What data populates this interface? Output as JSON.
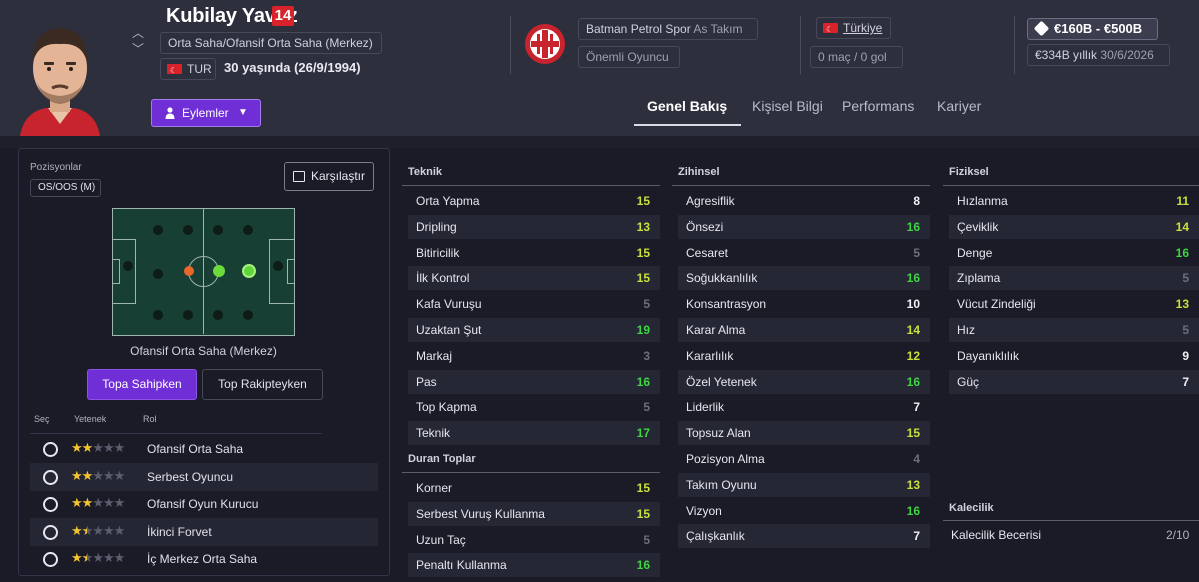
{
  "player": {
    "name": "Kubilay Yavuz",
    "number": "14",
    "position": "Orta Saha/Ofansif Orta Saha (Merkez)",
    "nationality": "TUR",
    "age_text": "30 yaşında (26/9/1994)"
  },
  "club": {
    "name": "Batman Petrol Spor",
    "team": "As Takım",
    "status": "Önemli Oyuncu"
  },
  "country": {
    "name": "Türkiye",
    "apps": "0 maç / 0 gol"
  },
  "finance": {
    "value_range": "€160B - €500B",
    "wage": "€334B yıllık",
    "contract_end": "30/6/2026"
  },
  "actions_label": "Eylemler",
  "tabs": [
    "Genel Bakış",
    "Kişisel Bilgi",
    "Performans",
    "Kariyer"
  ],
  "left": {
    "positions_label": "Pozisyonlar",
    "position_tag": "OS/OOS (M)",
    "compare_label": "Karşılaştır",
    "pitch_caption": "Ofansif Orta Saha (Merkez)",
    "toggle_in_possession": "Topa Sahipken",
    "toggle_out_possession": "Top Rakipteyken",
    "role_headers": {
      "select": "Seç",
      "ability": "Yetenek",
      "role": "Rol"
    },
    "roles": [
      {
        "name": "Ofansif Orta Saha",
        "stars": 2
      },
      {
        "name": "Serbest Oyuncu",
        "stars": 2
      },
      {
        "name": "Ofansif Oyun Kurucu",
        "stars": 2
      },
      {
        "name": "İkinci Forvet",
        "stars": 1.5
      },
      {
        "name": "İç Merkez Orta Saha",
        "stars": 1.5
      }
    ]
  },
  "attributes": {
    "technical_title": "Teknik",
    "technical": [
      {
        "name": "Orta Yapma",
        "value": 15
      },
      {
        "name": "Dripling",
        "value": 13
      },
      {
        "name": "Bitiricilik",
        "value": 15
      },
      {
        "name": "İlk Kontrol",
        "value": 15
      },
      {
        "name": "Kafa Vuruşu",
        "value": 5
      },
      {
        "name": "Uzaktan Şut",
        "value": 19
      },
      {
        "name": "Markaj",
        "value": 3
      },
      {
        "name": "Pas",
        "value": 16
      },
      {
        "name": "Top Kapma",
        "value": 5
      },
      {
        "name": "Teknik",
        "value": 17
      }
    ],
    "set_pieces_title": "Duran Toplar",
    "set_pieces": [
      {
        "name": "Korner",
        "value": 15
      },
      {
        "name": "Serbest Vuruş Kullanma",
        "value": 15
      },
      {
        "name": "Uzun Taç",
        "value": 5
      },
      {
        "name": "Penaltı Kullanma",
        "value": 16
      }
    ],
    "mental_title": "Zihinsel",
    "mental": [
      {
        "name": "Agresiflik",
        "value": 8
      },
      {
        "name": "Önsezi",
        "value": 16
      },
      {
        "name": "Cesaret",
        "value": 5
      },
      {
        "name": "Soğukkanlılık",
        "value": 16
      },
      {
        "name": "Konsantrasyon",
        "value": 10
      },
      {
        "name": "Karar Alma",
        "value": 14
      },
      {
        "name": "Kararlılık",
        "value": 12
      },
      {
        "name": "Özel Yetenek",
        "value": 16
      },
      {
        "name": "Liderlik",
        "value": 7
      },
      {
        "name": "Topsuz Alan",
        "value": 15
      },
      {
        "name": "Pozisyon Alma",
        "value": 4
      },
      {
        "name": "Takım Oyunu",
        "value": 13
      },
      {
        "name": "Vizyon",
        "value": 16
      },
      {
        "name": "Çalışkanlık",
        "value": 7
      }
    ],
    "physical_title": "Fiziksel",
    "physical": [
      {
        "name": "Hızlanma",
        "value": 11
      },
      {
        "name": "Çeviklik",
        "value": 14
      },
      {
        "name": "Denge",
        "value": 16
      },
      {
        "name": "Zıplama",
        "value": 5
      },
      {
        "name": "Vücut Zindeliği",
        "value": 13
      },
      {
        "name": "Hız",
        "value": 5
      },
      {
        "name": "Dayanıklılık",
        "value": 9
      },
      {
        "name": "Güç",
        "value": 7
      }
    ],
    "goalkeeping_title": "Kalecilik",
    "goalkeeping": {
      "name": "Kalecilik Becerisi",
      "value": "2/10"
    }
  }
}
